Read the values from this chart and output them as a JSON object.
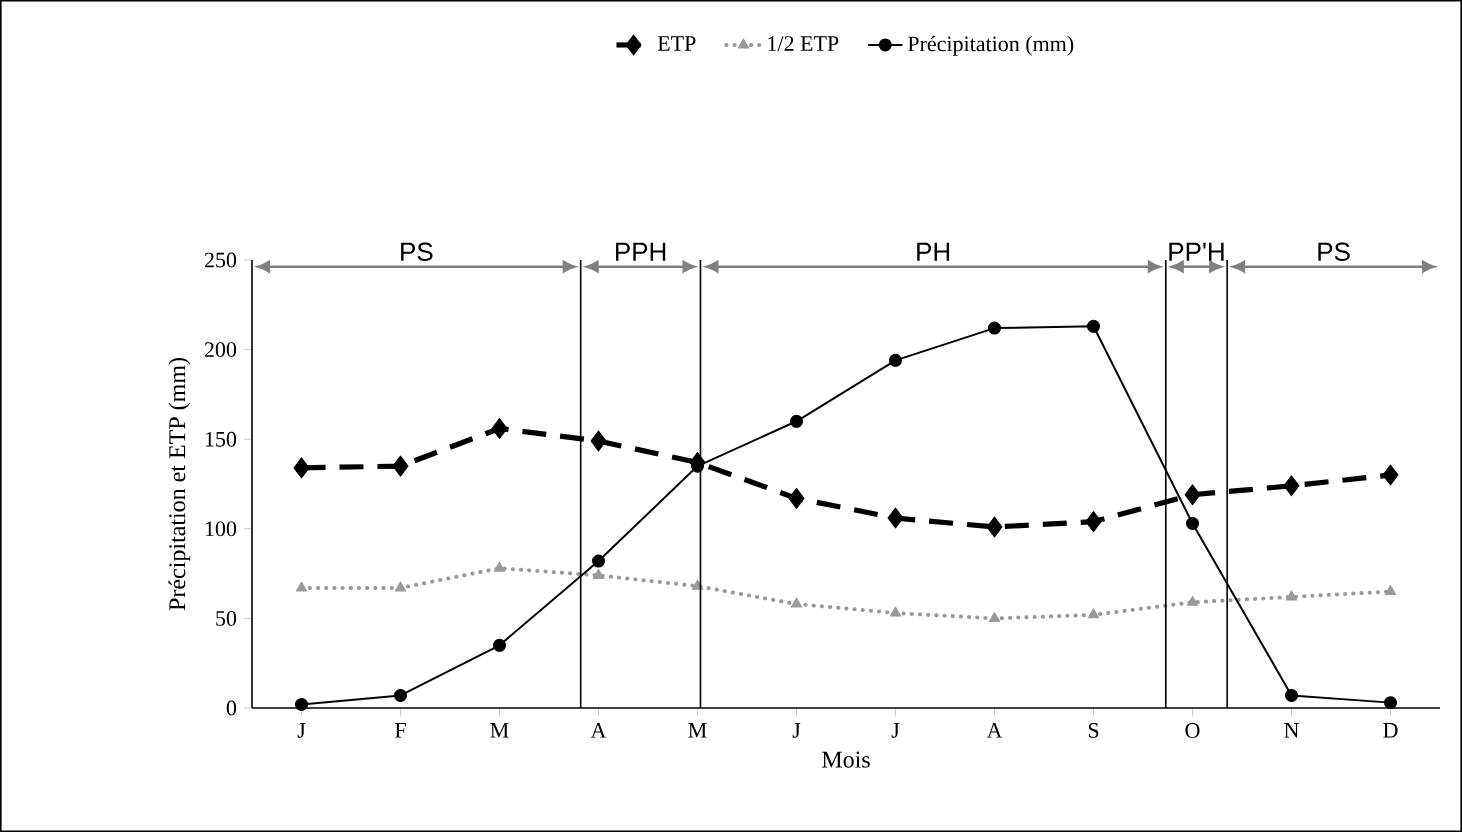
{
  "chart_data": {
    "type": "line",
    "xlabel": "Mois",
    "ylabel": "Précipitation et ETP (mm)",
    "categories": [
      "J",
      "F",
      "M",
      "A",
      "M",
      "J",
      "J",
      "A",
      "S",
      "O",
      "N",
      "D"
    ],
    "ylim": [
      0,
      250
    ],
    "yticks": [
      0,
      50,
      100,
      150,
      200,
      250
    ],
    "legend": "top",
    "series": [
      {
        "name": "ETP",
        "color": "#000000",
        "marker": "diamond",
        "line_style": "dashed",
        "values": [
          134,
          135,
          156,
          149,
          137,
          117,
          106,
          101,
          104,
          119,
          124,
          130
        ]
      },
      {
        "name": "1/2 ETP",
        "color": "#999999",
        "marker": "triangle",
        "line_style": "dotted",
        "values": [
          67,
          67,
          78,
          74,
          68,
          58,
          53,
          50,
          52,
          59,
          62,
          65
        ]
      },
      {
        "name": "Précipitation (mm)",
        "color": "#000000",
        "marker": "circle",
        "line_style": "solid",
        "values": [
          2,
          7,
          35,
          82,
          135,
          160,
          194,
          212,
          213,
          103,
          7,
          3
        ]
      }
    ],
    "annotations": [
      "PS",
      "PPH",
      "PH",
      "PP'H",
      "PS"
    ]
  }
}
